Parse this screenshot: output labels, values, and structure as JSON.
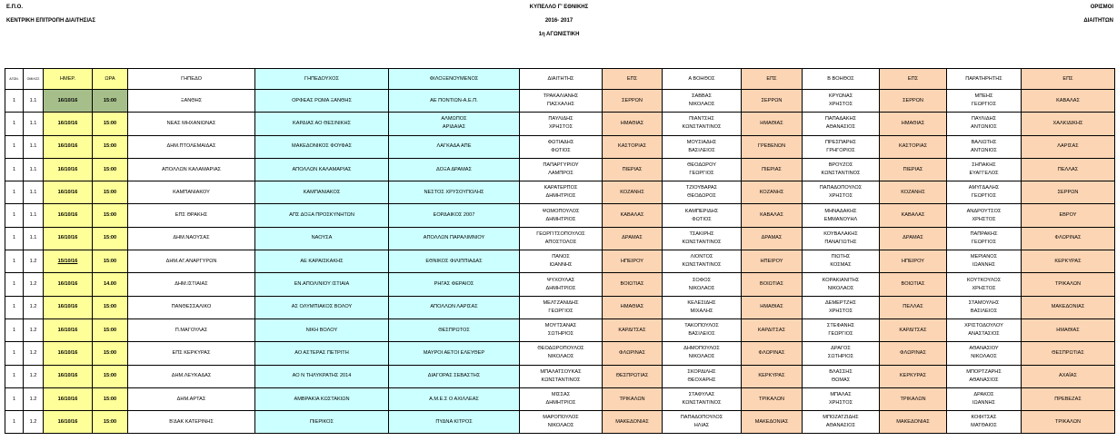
{
  "header": {
    "org": "Ε.Π.Ο.",
    "committee": "ΚΕΝΤΡΙΚΗ ΕΠΙΤΡΟΠΗ ΔΙΑΙΤΗΣΙΑΣ",
    "cup": "ΚΥΠΕΛΛΟ Γ' ΕΘΝΙΚΗΣ",
    "season": "2016- 2017",
    "round": "1η ΑΓΩΝΙΣΤΙΚΗ",
    "right_1": "ΟΡΙΣΜΟΙ",
    "right_2": "ΔΙΑΙΤΗΤΩΝ"
  },
  "colors": {
    "date_time": "#ffff99",
    "teams": "#ccffff",
    "eps": "#fcd5b4",
    "highlight": "#a6bf8a"
  },
  "columns": [
    "ΑΓΩΝ.",
    "ΟΜΙΛΟΣ",
    "ΗΜΕΡ.",
    "ΩΡΑ",
    "ΓΗΠΕΔΟ",
    "ΓΗΠΕΔΟΥΧΟΣ",
    "ΦΙΛΟΞΕΝΟΥΜΕΝΟΣ",
    "ΔΙΑΙΤΗΤΗΣ",
    "ΕΠΣ",
    "Α ΒΟΗΘΟΣ",
    "ΕΠΣ",
    "Β ΒΟΗΘΟΣ",
    "ΕΠΣ",
    "ΠΑΡΑΤΗΡΗΤΗΣ",
    "ΕΠΣ"
  ],
  "rows": [
    [
      "1",
      "1.1",
      "16/10/16",
      "15:00",
      "ΞΑΝΘΗΣ",
      "ΟΡΦΕΑΣ ΡΩΜΑ ΞΑΝΘΗΣ",
      "ΑΕ ΠΟΝΤΙΩΝ-Α.Ε.Π.",
      "ΤΡΑΚΑΛΙΑΝΗΣ ΠΑΣΧΑΛΗΣ",
      "ΣΕΡΡΩΝ",
      "ΣΑΒΒΑΣ ΝΙΚΟΛΑΟΣ",
      "ΣΕΡΡΩΝ",
      "ΚΡΥΩΝΑΣ ΧΡΗΣΤΟΣ",
      "ΣΕΡΡΩΝ",
      "ΜΠΕΗΣ ΓΕΩΡΓΙΟΣ",
      "ΚΑΒΑΛΑΣ"
    ],
    [
      "1",
      "1.1",
      "16/10/16",
      "15:00",
      "ΝΕΑΣ ΜΗΧΑΝΙΩΝΑΣ",
      "ΚΑΡΔΙΑΣ ΑΟ ΘΕΣ/ΝΙΚΗΣ",
      "ΑΛΜΩΠΟΣ ΑΡΙΔΑΙΑΣ",
      "ΠΑΥΛΙΔΗΣ ΧΡΗΣΤΟΣ",
      "ΗΜΑΘΙΑΣ",
      "ΠΙΑΝΤΣΗΣ ΚΩΝΣΤΑΝΤΙΝΟΣ",
      "ΗΜΑΘΙΑΣ",
      "ΠΑΠΑΔΑΚΗΣ ΑΘΑΝΑΣΙΟΣ",
      "ΗΜΑΘΙΑΣ",
      "ΠΑΥΛΙΔΗΣ ΑΝΤΩΝΙΟΣ",
      "ΧΑΛΚΙΔΙΚΗΣ"
    ],
    [
      "1",
      "1.1",
      "16/10/16",
      "15:00",
      "ΔΗΜ.ΠΤΟΛΕΜΑΙΔΑΣ",
      "ΜΑΚΕΔΟΝΙΚΟΣ ΦΟΥΦΑΣ",
      "ΛΑΓΚΑΔΑ ΑΠΕ",
      "ΦΩΤΙΑΔΗΣ ΦΩΤΙΟΣ",
      "ΚΑΣΤΟΡΙΑΣ",
      "ΜΟΥΣΙΑΔΗΣ ΒΑΣΙΛΕΙΟΣ",
      "ΓΡΕΒΕΝΩΝ",
      "ΠΡΕΣΠΑΡΗΣ ΓΡΗΓΟΡΙΟΣ",
      "ΚΑΣΤΟΡΙΑΣ",
      "ΒΑΛΙΩΤΗΣ ΑΝΤΩΝΙΟΣ",
      "ΛΑΡΙΣΑΣ"
    ],
    [
      "1",
      "1.1",
      "16/10/16",
      "15:00",
      "ΑΠΟΛΛΩΝ ΚΑΛΑΜΑΡΙΑΣ",
      "ΑΠΟΛΛΩΝ ΚΑΛΑΜΑΡΙΑΣ",
      "ΔΟΞΑ ΔΡΑΜΑΣ",
      "ΠΑΠΑΡΓΥΡΙΟΥ ΛΑΜΠΡΟΣ",
      "ΠΙΕΡΙΑΣ",
      "ΘΕΟΔΩΡΟΥ ΓΕΩΡΓΙΟΣ",
      "ΠΙΕΡΙΑΣ",
      "ΒΡΟΥΖΟΣ ΚΩΝΣΤΑΝΤΙΝΟΣ",
      "ΠΙΕΡΙΑΣ",
      "ΣΗΠΑΚΗΣ ΕΥΑΓΓΕΛΟΣ",
      "ΠΕΛΛΑΣ"
    ],
    [
      "1",
      "1.1",
      "16/10/16",
      "15:00",
      "ΚΑΜΠΑΝΙΑΚΟΥ",
      "ΚΑΜΠΑΝΙΑΚΟΣ",
      "ΝΕΣΤΟΣ ΧΡΥΣΟΥΠΟΛΗΣ",
      "ΚΑΡΑΤΕΡΠΟΣ ΔΗΜΗΤΡΙΟΣ",
      "ΚΟΖΑΝΗΣ",
      "ΤΖΙΟΥΒΑΡΑΣ ΘΕΟΔΩΡΟΣ",
      "ΚΟΖΑΝΗΣ",
      "ΠΑΠΑΔΟΠΟΥΛΟΣ ΧΡΗΣΤΟΣ",
      "ΚΟΖΑΝΗΣ",
      "ΑΜΥΓΔΑΛΗΣ ΓΕΩΡΓΙΟΣ",
      "ΣΕΡΡΩΝ"
    ],
    [
      "1",
      "1.1",
      "16/10/16",
      "15:00",
      "ΕΠΣ ΘΡΑΚΗΣ",
      "ΑΠΣ ΔΟΞΑ ΠΡΟΣΚΥΝΗΤΩΝ",
      "ΕΟΡΔΑΙΚΟΣ 2007",
      "ΨΩΜΟΠΟΥΛΟΣ ΔΗΜΗΤΡΙΟΣ",
      "ΚΑΒΑΛΑΣ",
      "ΚΑΜΠΕΡΙΔΗΣ ΦΩΤΙΟΣ",
      "ΚΑΒΑΛΑΣ",
      "ΜΗΝΑΔΑΚΗΣ ΕΜΜΑΝΟΥΗΛ",
      "ΚΑΒΑΛΑΣ",
      "ΑΝΔΡΟΥΤΣΟΣ ΧΡΗΣΤΟΣ",
      "ΕΒΡΟΥ"
    ],
    [
      "1",
      "1.1",
      "16/10/16",
      "15:00",
      "ΔΗΜ.ΝΑΟΥΣΑΣ",
      "ΝΑΟΥΣΑ",
      "ΑΠΟΛΛΩΝ ΠΑΡΑΛΙΜΝΙΟΥ",
      "ΓΕΩΡΓΙΤΣΟΠΟΥΛΟΣ ΑΠΟΣΤΟΛΟΣ",
      "ΔΡΑΜΑΣ",
      "ΤΣΑΚΙΡΗΣ ΚΩΝΣΤΑΝΤΙΝΟΣ",
      "ΔΡΑΜΑΣ",
      "ΚΟΥΒΑΛΑΚΗΣ ΠΑΝΑΓΙΩΤΗΣ",
      "ΔΡΑΜΑΣ",
      "ΠΑΠΡΑΚΗΣ ΓΕΩΡΓΙΟΣ",
      "ΦΛΩΡΙΝΑΣ"
    ],
    [
      "1",
      "1.2",
      "15/10/16",
      "15:00",
      "ΔΗΜ.ΑΓ.ΑΝΑΡΓΥΡΩΝ",
      "ΑΕ ΚΑΡΑΙΣΚΑΚΗΣ",
      "ΕΘΝΙΚΟΣ ΦΙΛΙΠΠΙΑΔΑΣ",
      "ΠΑΝΟΣ ΙΩΑΝΝΗΣ",
      "ΗΠΕΙΡΟΥ",
      "ΛΙΟΝΤΟΣ ΚΩΝΣΤΑΝΤΙΝΟΣ",
      "ΗΠΕΙΡΟΥ",
      "ΠΙΩΤΗΣ ΚΟΣΜΑΣ",
      "ΗΠΕΙΡΟΥ",
      "ΜΕΡΙΑΝΟΣ ΙΩΑΝΝΗΣ",
      "ΚΕΡΚΥΡΑΣ"
    ],
    [
      "1",
      "1.2",
      "16/10/16",
      "14.00",
      "ΔΗΜ.ΙΣΤΙΑΙΑΣ",
      "ΕΝ.ΑΠΟΛ/ΝΙΟΥ ΙΣΤΙΑΙΑ",
      "ΡΗΓΑΣ ΦΕΡΑΙΟΣ",
      "ΨΥΧΟΥΛΑΣ ΔΗΜΗΤΡΙΟΣ",
      "ΒΟΙΩΤΙΑΣ",
      "ΣΟΦΟΣ ΝΙΚΟΛΑΟΣ",
      "ΒΟΙΩΤΙΑΣ",
      "ΚΟΡΑΚΙΑΝΙΤΗΣ ΝΙΚΟΛΑΟΣ",
      "ΒΟΙΩΤΙΑΣ",
      "ΚΟΥΤΚΟΥΛΟΣ ΧΡΗΣΤΟΣ",
      "ΤΡΙΚΑΛΩΝ"
    ],
    [
      "1",
      "1.2",
      "16/10/16",
      "15:00",
      "ΠΑΝΘΕΣΣΑΛΙΚΟ",
      "ΑΣ ΟΛΥΜΠΙΑΚΟΣ ΒΟΛΟΥ",
      "ΑΠΟΛΛΩΝ ΛΑΡΙΣΑΣ",
      "ΜΕΛΤΖΑΝΙΔΗΣ ΓΕΩΡΓΙΟΣ",
      "ΗΜΑΘΙΑΣ",
      "ΚΕΛΕΣΙΔΗΣ ΜΙΧΑΛΗΣ",
      "ΗΜΑΘΙΑΣ",
      "ΔΕΜΕΡΤΖΗΣ ΧΡΗΣΤΟΣ",
      "ΠΕΛΛΑΣ",
      "ΣΤΑΜΟΥΛΗΣ ΒΑΣΙΛΕΙΟΣ",
      "ΜΑΚΕΔΟΝΙΑΣ"
    ],
    [
      "1",
      "1.2",
      "16/10/16",
      "15:00",
      "Π.ΜΑΓΟΥΛΑΣ",
      "ΝΙΚΗ ΒΟΛΟΥ",
      "ΘΕΣΠΡΩΤΟΣ",
      "ΜΟΥΤΣΑΝΑΣ ΣΩΤΗΡΙΟΣ",
      "ΚΑΡΔΙΤΣΑΣ",
      "ΤΑΚΟΠΟΥΛΟΣ ΒΑΣΙΛΕΙΟΣ",
      "ΚΑΡΔΙΤΣΑΣ",
      "ΣΤΕΦΑΝΗΣ ΓΕΩΡΓΙΟΣ",
      "ΚΑΡΔΙΤΣΑΣ",
      "ΧΡΙΣΤΟΔΟΥΛΟΥ ΑΝΑΣΤΑΣΙΟΣ",
      "ΗΜΑΘΙΑΣ"
    ],
    [
      "1",
      "1.2",
      "16/10/16",
      "15:00",
      "ΕΠΣ ΚΕΡΚΥΡΑΣ",
      "ΑΟ ΑΣΤΕΡΑΣ ΠΕΤΡΙΤΗ",
      "ΜΑΥΡΟΙ ΑΕΤΟΙ ΕΛΕΥΘΕΡ",
      "ΘΕΟΔΩΡΟΠΟΥΛΟΣ ΝΙΚΟΛΑΟΣ",
      "ΦΛΩΡΙΝΑΣ",
      "ΔΗΜΟΠΟΥΛΟΣ ΝΙΚΟΛΑΟΣ",
      "ΦΛΩΡΙΝΑΣ",
      "ΔΡΑΓΟΣ ΣΩΤΗΡΙΟΣ",
      "ΦΛΩΡΙΝΑΣ",
      "ΑΘΑΝΑΣΙΟΥ ΝΙΚΟΛΑΟΣ",
      "ΘΕΣΠΡΩΤΙΑΣ"
    ],
    [
      "1",
      "1.2",
      "16/10/16",
      "15:00",
      "ΔΗΜ.ΛΕΥΚΑΔΑΣ",
      "ΑΟ Ν ΤΗΛΥΚΡΑΤΗΣ 2014",
      "ΔΙΑΓΟΡΑΣ ΣΕΒΑΣΤΗΣ",
      "ΜΠΑΛΑΤΣΟΥΚΑΣ ΚΩΝΣΤΑΝΤΙΝΟΣ",
      "ΘΕΣΠΡΩΤΙΑΣ",
      "ΣΚΟΡΔΙΛΗΣ ΘΕΟΧΑΡΗΣ",
      "ΚΕΡΚΥΡΑΣ",
      "ΒΛΑΣΣΗΣ ΘΩΜΑΣ",
      "ΚΕΡΚΥΡΑΣ",
      "ΜΠΟΡΤΖΑΡΗΣ ΑΘΑΝΑΣΙΟΣ",
      "ΑΧΑΪΑΣ"
    ],
    [
      "1",
      "1.2",
      "16/10/16",
      "15:00",
      "ΔΗΜ.ΑΡΤΑΣ",
      "ΑΜΒΡΑΚΙΑ ΚΩΣΤΑΚΙΩΝ",
      "Α.Μ.Ε.Σ Ο ΑΧΙΛΛΕΑΣ",
      "ΜΙΣΣΑΣ ΔΗΜΗΤΡΙΟΣ",
      "ΤΡΙΚΑΛΩΝ",
      "ΣΤΑΦΥΛΑΣ ΚΩΝΣΤΑΝΤΙΝΟΣ",
      "ΤΡΙΚΑΛΩΝ",
      "ΜΠΑΛΑΣ ΧΡΗΣΤΟΣ",
      "ΤΡΙΚΑΛΩΝ",
      "ΔΡΑΚΟΣ ΙΩΑΝΝΗΣ",
      "ΠΡΕΒΕΖΑΣ"
    ],
    [
      "1",
      "1.2",
      "16/10/16",
      "15:00",
      "Β'ΔΑΚ ΚΑΤΕΡΙΝΗΣ",
      "ΠΙΕΡΙΚΟΣ",
      "ΠΥΔΝΑ ΚΙΤΡΟΣ",
      "ΜΑΡΟΠΟΥΛΟΣ ΝΙΚΟΛΑΟΣ",
      "ΜΑΚΕΔΟΝΙΑΣ",
      "ΠΑΠΑΔΟΠΟΥΛΟΣ ΗΛΙΑΣ",
      "ΜΑΚΕΔΟΝΙΑΣ",
      "ΜΠΟΖΑΤΖΙΔΗΣ ΑΘΑΝΑΣΙΟΣ",
      "ΜΑΚΕΔΟΝΙΑΣ",
      "ΚΟΦΙΤΣΑΣ ΜΑΤΘΑΙΟΣ",
      "ΤΡΙΚΑΛΩΝ"
    ]
  ]
}
